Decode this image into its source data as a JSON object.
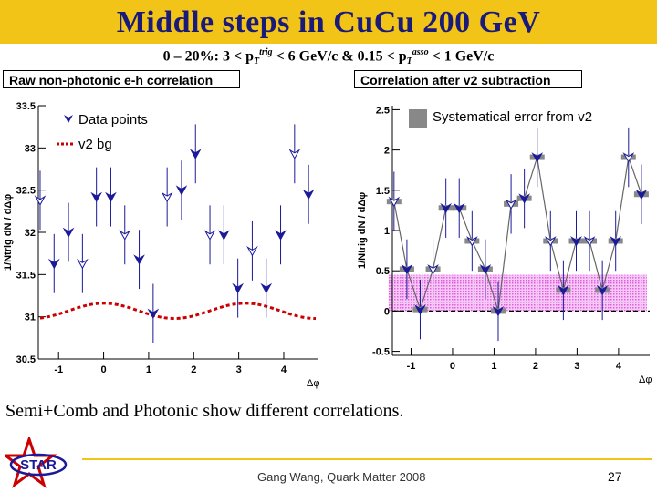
{
  "slide": {
    "title": "Middle steps in CuCu 200 GeV",
    "subtitle_text": "0 – 20%: 3 < pTtrig < 6 GeV/c & 0.15 < pTasso < 1 GeV/c",
    "subtitle_parts": [
      "0 – 20%: 3 < p",
      "T",
      "trig",
      " < 6 GeV/c & 0.15 < p",
      "T",
      "asso",
      " < 1 GeV/c"
    ],
    "conclusion": "Semi+Comb and Photonic show different correlations.",
    "footer": "Gang Wang, Quark Matter 2008",
    "page_number": "27",
    "logo_text": "STAR",
    "colors": {
      "title_bar": "#f2c417",
      "title_text": "#1a1a7a",
      "data_blue": "#1a1a9a",
      "v2_red": "#cc0000",
      "sys_pink": "#e060e0"
    }
  },
  "chart_data": [
    {
      "type": "scatter",
      "title": "Raw non-photonic e-h correlation",
      "xlabel": "Δφ",
      "ylabel": "1/Ntrig dN / dΔφ",
      "xlim": [
        -1.45,
        4.75
      ],
      "ylim": [
        30.5,
        33.5
      ],
      "xticks": [
        -1,
        0,
        1,
        2,
        3,
        4
      ],
      "yticks": [
        30.5,
        31,
        31.5,
        32,
        32.5,
        33,
        33.5
      ],
      "legend": {
        "position": "top-left",
        "entries": [
          "Data points",
          "v2 bg"
        ]
      },
      "series": [
        {
          "name": "Data points",
          "x": [
            -1.41,
            -1.1,
            -0.78,
            -0.47,
            -0.16,
            0.16,
            0.47,
            0.79,
            1.1,
            1.41,
            1.73,
            2.04,
            2.36,
            2.67,
            2.98,
            3.3,
            3.61,
            3.93,
            4.24,
            4.55
          ],
          "y": [
            32.38,
            31.63,
            32.0,
            31.63,
            32.42,
            32.42,
            31.97,
            31.68,
            31.04,
            32.42,
            32.5,
            32.93,
            31.97,
            31.97,
            31.34,
            31.78,
            31.34,
            31.97,
            32.93,
            32.45
          ],
          "err": [
            0.35,
            0.35,
            0.35,
            0.35,
            0.35,
            0.35,
            0.35,
            0.35,
            0.35,
            0.35,
            0.35,
            0.35,
            0.35,
            0.35,
            0.35,
            0.35,
            0.35,
            0.35,
            0.35,
            0.35
          ]
        },
        {
          "name": "v2 bg",
          "baseline": 31.07,
          "amplitude": 0.09,
          "harmonic": 2
        }
      ]
    },
    {
      "type": "scatter",
      "title": "Correlation after v2 subtraction",
      "xlabel": "Δφ",
      "ylabel": "1/Ntrig dN / dΔφ",
      "xlim": [
        -1.45,
        4.75
      ],
      "ylim": [
        -0.55,
        2.55
      ],
      "xticks": [
        -1,
        0,
        1,
        2,
        3,
        4
      ],
      "yticks": [
        -0.5,
        0,
        0.5,
        1,
        1.5,
        2,
        2.5
      ],
      "legend": {
        "position": "top-right",
        "entries": [
          "Systematical error from v2"
        ]
      },
      "systematic_band": [
        0,
        0.45
      ],
      "series": [
        {
          "name": "After v2 subtraction",
          "x": [
            -1.41,
            -1.1,
            -0.78,
            -0.47,
            -0.16,
            0.16,
            0.47,
            0.79,
            1.1,
            1.41,
            1.73,
            2.04,
            2.36,
            2.67,
            2.98,
            3.3,
            3.61,
            3.93,
            4.24,
            4.55
          ],
          "y": [
            1.36,
            0.52,
            0.02,
            0.52,
            1.28,
            1.28,
            0.87,
            0.52,
            0.0,
            1.33,
            1.4,
            1.91,
            0.87,
            0.26,
            0.87,
            0.87,
            0.26,
            0.87,
            1.91,
            1.45
          ],
          "err": [
            0.37,
            0.37,
            0.37,
            0.37,
            0.37,
            0.37,
            0.37,
            0.37,
            0.37,
            0.37,
            0.37,
            0.37,
            0.37,
            0.37,
            0.37,
            0.37,
            0.37,
            0.37,
            0.37,
            0.37
          ]
        }
      ]
    }
  ]
}
